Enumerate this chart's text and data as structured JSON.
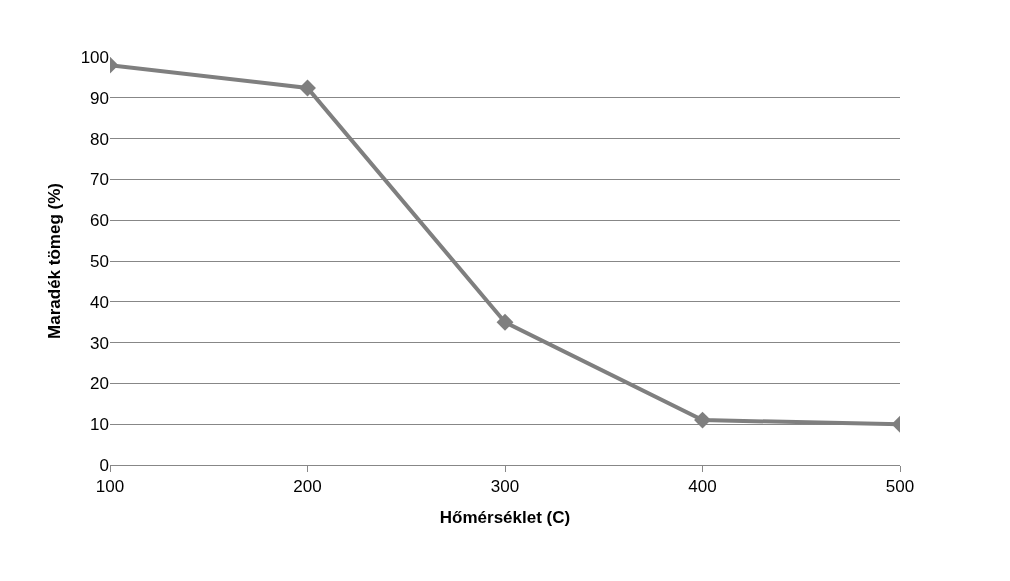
{
  "chart_data": {
    "type": "line",
    "xlabel": "Hőmérséklet (C)",
    "ylabel": "Maradék tömeg (%)",
    "x": [
      100,
      200,
      300,
      400,
      500
    ],
    "series": [
      {
        "color": "#7f7f7f",
        "values": [
          98,
          92.4,
          35,
          11,
          10
        ]
      }
    ],
    "xlim": [
      100,
      500
    ],
    "xticks": [
      100,
      200,
      300,
      400,
      500
    ],
    "ylim": [
      0,
      100
    ],
    "yticks": [
      0,
      10,
      20,
      30,
      40,
      50,
      60,
      70,
      80,
      90,
      100
    ],
    "grid": "y",
    "marker": "diamond",
    "line_style": "solid"
  }
}
